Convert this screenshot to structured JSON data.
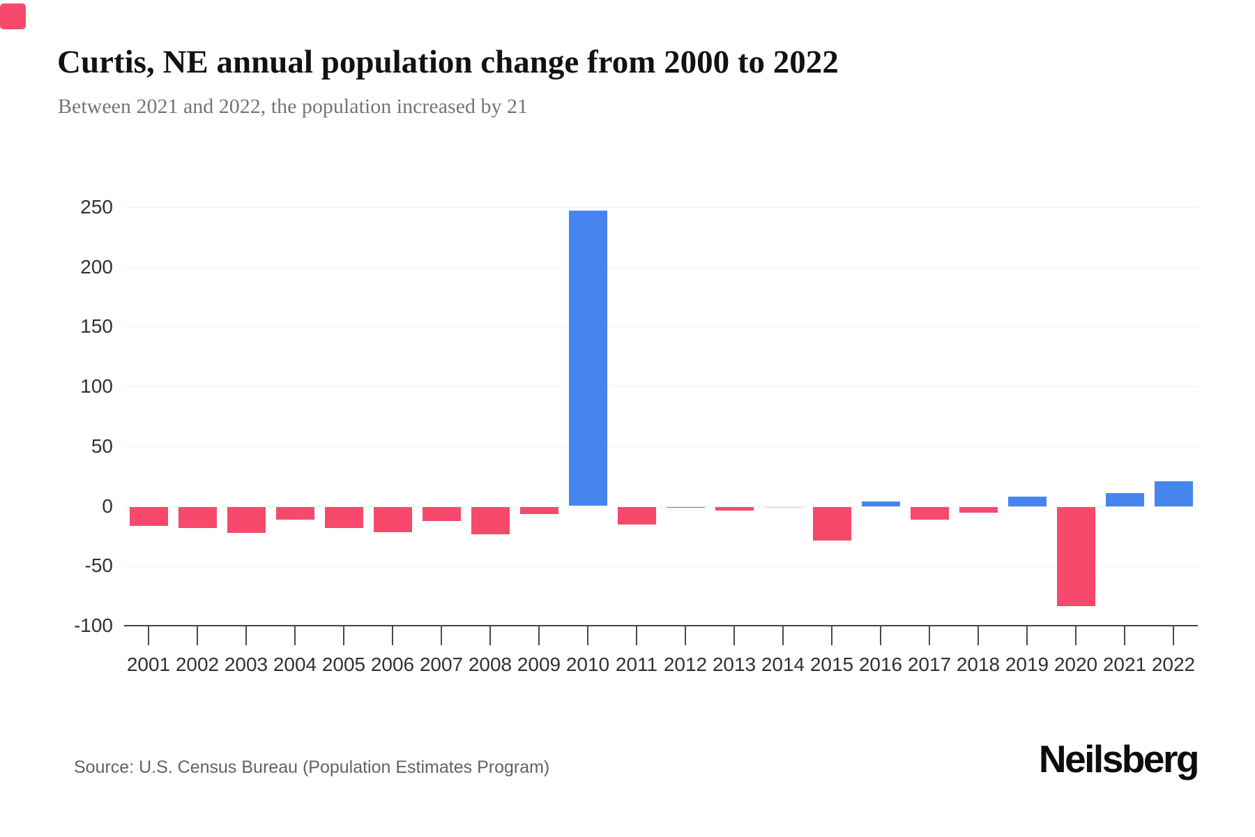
{
  "header": {
    "title": "Curtis, NE annual population change from 2000 to 2022",
    "subtitle": "Between 2021 and 2022, the population increased by 21"
  },
  "footer": {
    "source": "Source: U.S. Census Bureau (Population Estimates Program)",
    "brand": "Neilsberg"
  },
  "accent_color": "#f7496c",
  "chart_data": {
    "type": "bar",
    "title": "Curtis, NE annual population change from 2000 to 2022",
    "subtitle": "Between 2021 and 2022, the population increased by 21",
    "categories": [
      "2001",
      "2002",
      "2003",
      "2004",
      "2005",
      "2006",
      "2007",
      "2008",
      "2009",
      "2010",
      "2011",
      "2012",
      "2013",
      "2014",
      "2015",
      "2016",
      "2017",
      "2018",
      "2019",
      "2020",
      "2021",
      "2022"
    ],
    "values": [
      -16,
      -18,
      -22,
      -11,
      -18,
      -21,
      -12,
      -23,
      -6,
      247,
      -15,
      -1,
      -3,
      0,
      -28,
      4,
      -11,
      -5,
      8,
      -83,
      11,
      21
    ],
    "xlabel": "",
    "ylabel": "",
    "ylim": [
      -100,
      250
    ],
    "yticks": [
      250,
      200,
      150,
      100,
      50,
      0,
      -50,
      -100
    ],
    "grid": true,
    "legend": "none",
    "colors": {
      "positive": "#4685ee",
      "negative": "#f7496c",
      "gridline": "#f1f1f1",
      "axis": "#37474f"
    }
  }
}
